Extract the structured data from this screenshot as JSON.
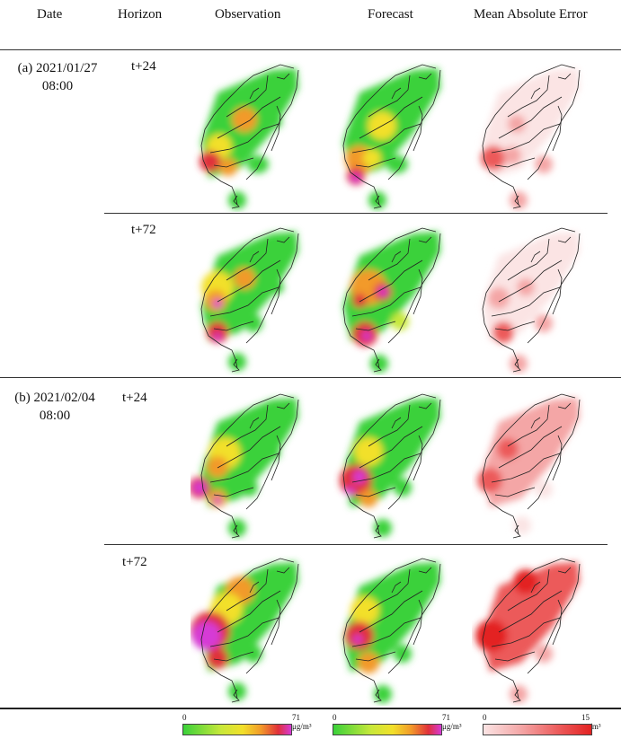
{
  "table": {
    "headers": [
      "Date",
      "Horizon",
      "Observation",
      "Forecast",
      "Mean Absolute Error"
    ],
    "cases": [
      {
        "label": "(a) 2021/01/27",
        "time": "08:00",
        "rows": [
          {
            "horizon": "t+24"
          },
          {
            "horizon": "t+72"
          }
        ]
      },
      {
        "label": "(b) 2021/02/04",
        "time": "08:00",
        "rows": [
          {
            "horizon": "t+24"
          },
          {
            "horizon": "t+72"
          }
        ]
      }
    ]
  },
  "colorbars": [
    {
      "min": "0",
      "max": "71",
      "unit": "μg/m³",
      "colors": [
        "#3ad13a",
        "#c8e83a",
        "#f2e02a",
        "#f29a2a",
        "#e0303a",
        "#d63ad6"
      ]
    },
    {
      "min": "0",
      "max": "71",
      "unit": "μg/m³",
      "colors": [
        "#3ad13a",
        "#c8e83a",
        "#f2e02a",
        "#f29a2a",
        "#e0303a",
        "#d63ad6"
      ]
    },
    {
      "min": "0",
      "max": "15",
      "unit": "μg/m³",
      "colors": [
        "#fbe4e4",
        "#f4a6a6",
        "#ec5a5a",
        "#e32222"
      ]
    }
  ]
}
